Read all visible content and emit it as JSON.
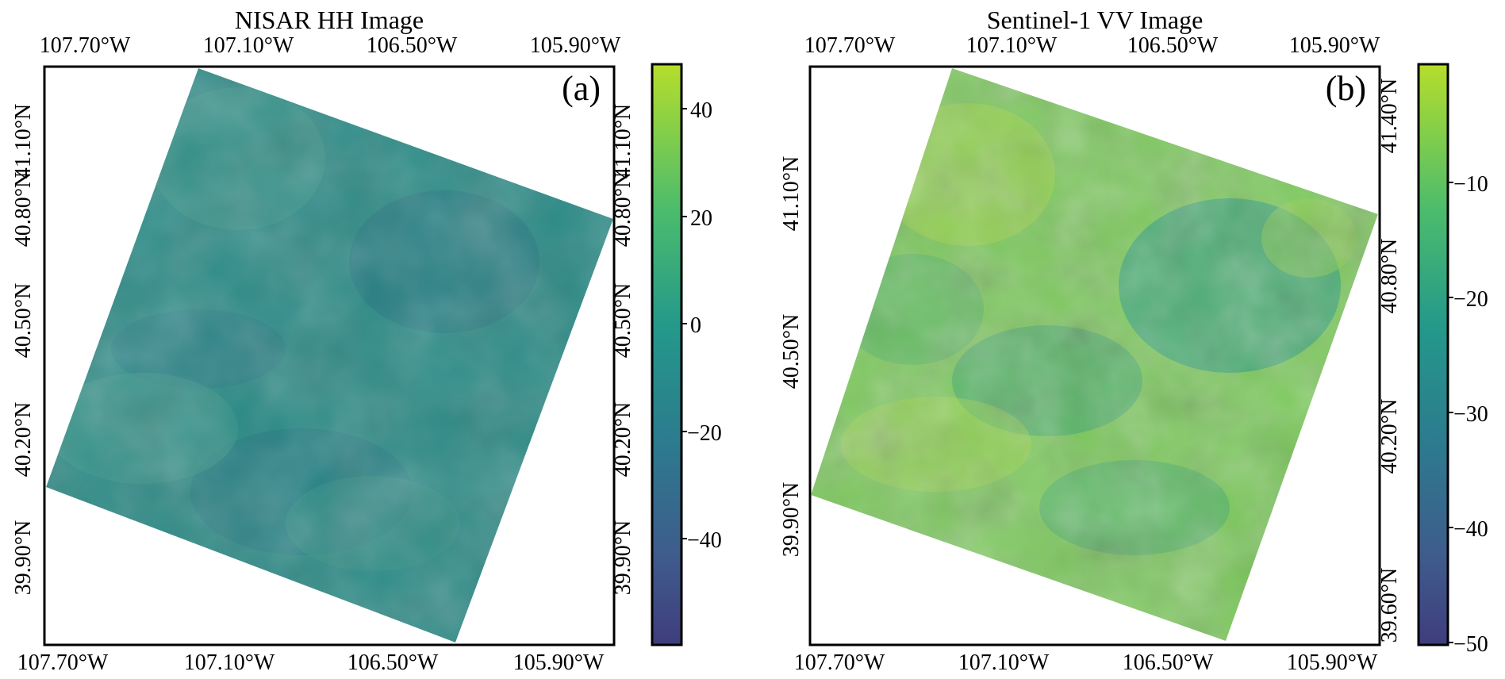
{
  "panels": [
    {
      "id": "a",
      "title": "NISAR HH Image",
      "panel_label": "(a)",
      "lon_ticks_top": [
        "107.70°W",
        "107.10°W",
        "106.50°W",
        "105.90°W"
      ],
      "lon_ticks_bottom": [
        "107.70°W",
        "107.10°W",
        "106.50°W",
        "105.90°W"
      ],
      "lat_ticks_left": [
        "39.90°N",
        "40.20°N",
        "40.50°N",
        "40.80°N",
        "41.10°N"
      ],
      "lat_ticks_right": [
        "39.90°N",
        "40.20°N",
        "40.50°N",
        "40.80°N",
        "41.10°N"
      ],
      "colorbar": {
        "colormap": "viridis",
        "range": [
          -60,
          50
        ],
        "ticks": [
          "40",
          "20",
          "0",
          "−20",
          "−40"
        ]
      },
      "image_colors": {
        "base": "#2a8a86",
        "dark": "#277d83",
        "light": "#3a988a"
      }
    },
    {
      "id": "b",
      "title": "Sentinel-1 VV Image",
      "panel_label": "(b)",
      "lon_ticks_top": [
        "107.70°W",
        "107.10°W",
        "106.50°W",
        "105.90°W"
      ],
      "lon_ticks_bottom": [
        "107.70°W",
        "107.10°W",
        "106.50°W",
        "105.90°W"
      ],
      "lat_ticks_left": [
        "39.90°N",
        "40.50°N",
        "41.10°N"
      ],
      "lat_ticks_right": [
        "39.60°N",
        "40.20°N",
        "40.80°N",
        "41.40°N"
      ],
      "colorbar": {
        "colormap": "viridis",
        "range": [
          -50,
          -3
        ],
        "ticks": [
          "−10",
          "−20",
          "−30",
          "−40",
          "−50"
        ]
      },
      "image_colors": {
        "base": "#7cc95c",
        "dark": "#3ea77a",
        "light": "#a8d84a"
      }
    }
  ]
}
